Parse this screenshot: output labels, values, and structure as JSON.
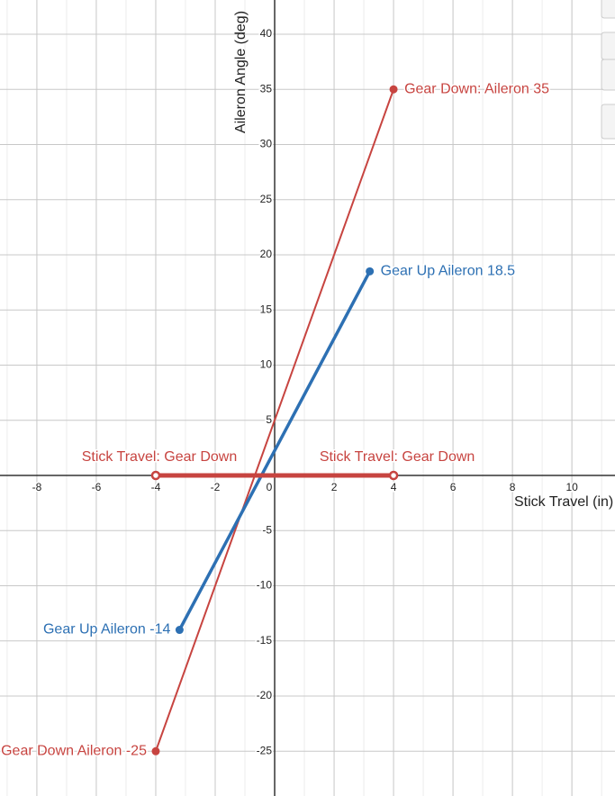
{
  "chart_data": {
    "type": "line",
    "x_label": "Stick Travel (in)",
    "y_label": "Aileron Angle (deg)",
    "xlim": [
      -9.24,
      11.45
    ],
    "ylim": [
      -29.06,
      43.1
    ],
    "xticks": [
      -8,
      -6,
      -4,
      -2,
      0,
      2,
      4,
      6,
      8,
      10
    ],
    "yticks": [
      -25,
      -20,
      -15,
      -10,
      -5,
      5,
      10,
      15,
      20,
      25,
      30,
      35,
      40
    ],
    "grid": true,
    "series": [
      {
        "color": "#c74440",
        "line_width": 2,
        "open_markers": false,
        "x": [
          -4,
          4
        ],
        "values": [
          -25,
          35
        ],
        "labels": [
          "Gear Down Aileron -25",
          "Gear Down: Aileron  35"
        ]
      },
      {
        "color": "#2d70b3",
        "line_width": 3.5,
        "open_markers": false,
        "x": [
          -3.2,
          3.2
        ],
        "values": [
          -14,
          18.5
        ],
        "labels": [
          "Gear Up Aileron -14",
          "Gear Up Aileron 18.5"
        ]
      },
      {
        "color": "#c74440",
        "line_width": 5,
        "open_markers": true,
        "x": [
          -4,
          4
        ],
        "values": [
          0,
          0
        ],
        "labels": [
          "Stick Travel:  Gear Down",
          "Stick Travel:  Gear Down"
        ]
      }
    ]
  }
}
